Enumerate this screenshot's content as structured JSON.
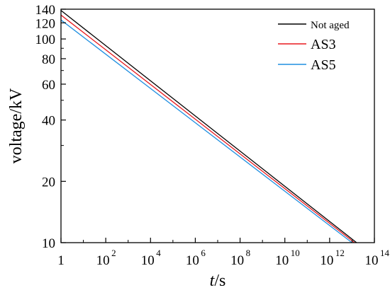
{
  "chart_data": {
    "type": "line",
    "title": "",
    "xlabel": {
      "italic": "t",
      "rest": "/s"
    },
    "ylabel": "voltage/kV",
    "x_scale": "log",
    "y_scale": "log",
    "xlim": [
      1,
      100000000000000.0
    ],
    "ylim": [
      10,
      140
    ],
    "grid": false,
    "legend_position": "top-right",
    "x_ticks": [
      {
        "value": 1,
        "base": "1",
        "exp": ""
      },
      {
        "value": 100.0,
        "base": "10",
        "exp": "2"
      },
      {
        "value": 10000.0,
        "base": "10",
        "exp": "4"
      },
      {
        "value": 1000000.0,
        "base": "10",
        "exp": "6"
      },
      {
        "value": 100000000.0,
        "base": "10",
        "exp": "8"
      },
      {
        "value": 10000000000.0,
        "base": "10",
        "exp": "10"
      },
      {
        "value": 1000000000000.0,
        "base": "10",
        "exp": "12"
      },
      {
        "value": 100000000000000.0,
        "base": "10",
        "exp": "14"
      }
    ],
    "y_ticks": [
      {
        "value": 10,
        "label": "10"
      },
      {
        "value": 20,
        "label": "20"
      },
      {
        "value": 40,
        "label": "40"
      },
      {
        "value": 60,
        "label": "60"
      },
      {
        "value": 80,
        "label": "80"
      },
      {
        "value": 100,
        "label": "100"
      },
      {
        "value": 120,
        "label": "120"
      },
      {
        "value": 140,
        "label": "140"
      }
    ],
    "series": [
      {
        "name": "Not aged",
        "color": "#000000",
        "x": [
          1,
          16000000000000.0
        ],
        "y": [
          138,
          10
        ]
      },
      {
        "name": "AS3",
        "color": "#e8191e",
        "x": [
          1,
          13000000000000.0
        ],
        "y": [
          131,
          10
        ]
      },
      {
        "name": "AS5",
        "color": "#1f8fe0",
        "x": [
          1,
          10000000000000.0
        ],
        "y": [
          124,
          10
        ]
      }
    ]
  }
}
